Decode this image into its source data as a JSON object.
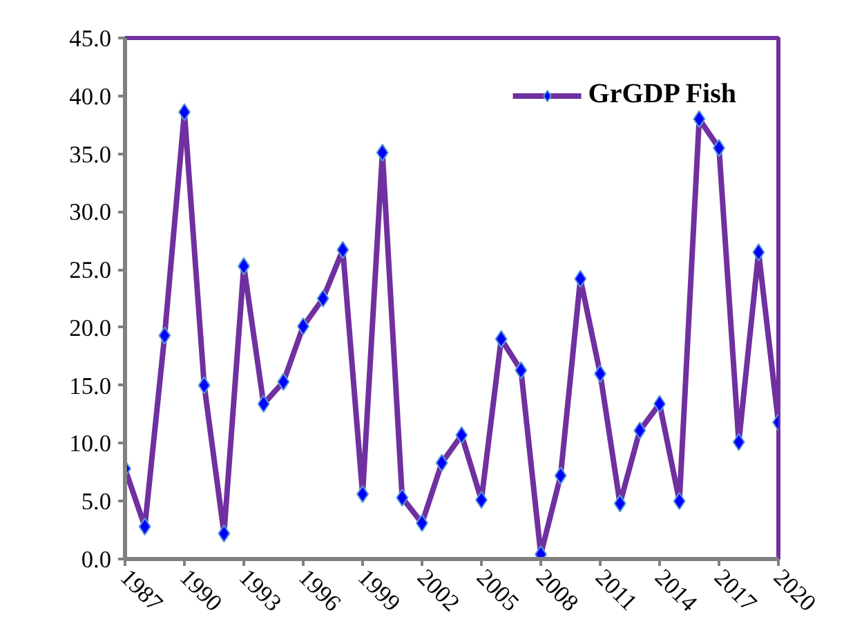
{
  "chart_data": {
    "type": "line",
    "x": [
      1987,
      1988,
      1989,
      1990,
      1991,
      1992,
      1993,
      1994,
      1995,
      1996,
      1997,
      1998,
      1999,
      2000,
      2001,
      2002,
      2003,
      2004,
      2005,
      2006,
      2007,
      2008,
      2009,
      2010,
      2011,
      2012,
      2013,
      2014,
      2015,
      2016,
      2017,
      2018,
      2019,
      2020
    ],
    "series": [
      {
        "name": "GrGDP Fish",
        "color": "#7030a0",
        "values": [
          7.8,
          2.8,
          19.3,
          38.6,
          15.0,
          2.2,
          25.3,
          13.4,
          15.3,
          20.1,
          22.5,
          26.7,
          5.6,
          35.1,
          5.3,
          3.1,
          8.3,
          10.7,
          5.1,
          19.0,
          16.3,
          0.4,
          7.2,
          24.2,
          16.0,
          4.8,
          11.1,
          13.4,
          5.0,
          38.0,
          35.5,
          10.1,
          26.5,
          11.8
        ]
      }
    ],
    "xlim": [
      1987,
      2020
    ],
    "xticks": [
      1987,
      1990,
      1993,
      1996,
      1999,
      2002,
      2005,
      2008,
      2011,
      2014,
      2017,
      2020
    ],
    "ylim": [
      0,
      45
    ],
    "yticks": [
      {
        "value": 0,
        "label": "0.0"
      },
      {
        "value": 5,
        "label": "5.0"
      },
      {
        "value": 10,
        "label": "10.0"
      },
      {
        "value": 15,
        "label": "15.0"
      },
      {
        "value": 20,
        "label": "20.0"
      },
      {
        "value": 25,
        "label": "25.0"
      },
      {
        "value": 30,
        "label": "30.0"
      },
      {
        "value": 35,
        "label": "35.0"
      },
      {
        "value": 40,
        "label": "40.0"
      },
      {
        "value": 45,
        "label": "45.0"
      }
    ],
    "grid": false,
    "legend": "top right",
    "marker": "diamond",
    "line_style": "solid"
  }
}
